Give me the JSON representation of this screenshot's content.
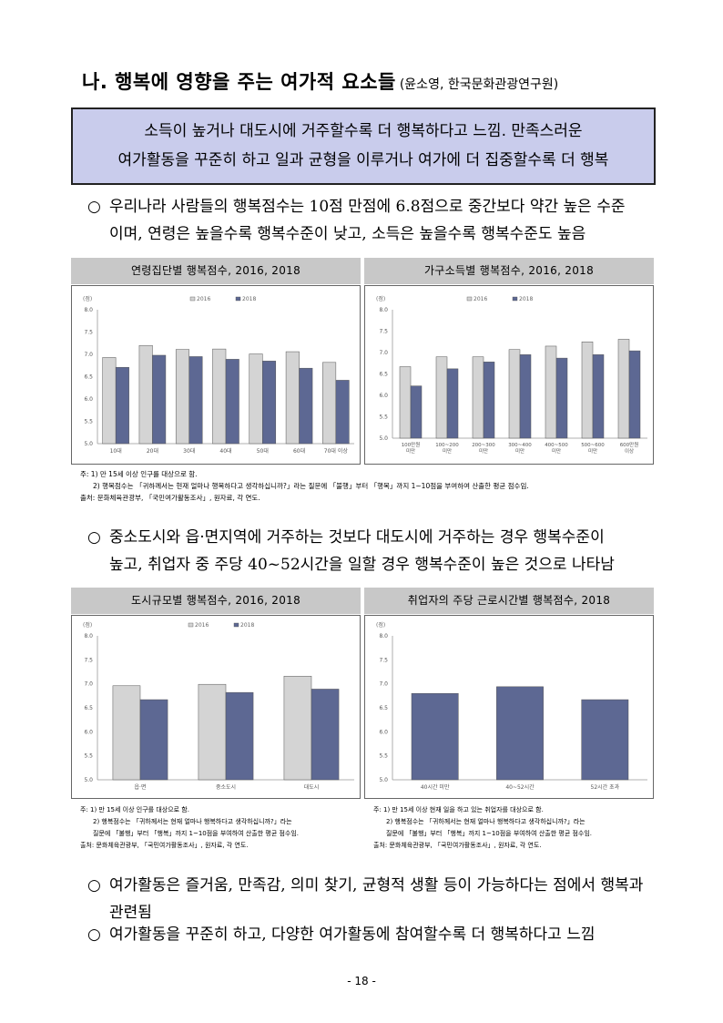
{
  "title": {
    "main": "나. 행복에 영향을 주는 여가적 요소들",
    "source": "(윤소영, 한국문화관광연구원)"
  },
  "summary": {
    "line1": "소득이 높거나 대도시에 거주할수록 더 행복하다고 느낌. 만족스러운",
    "line2": "여가활동을 꾸준히 하고 일과 균형을 이루거나 여가에 더 집중할수록 더 행복"
  },
  "bullets": {
    "b1": {
      "mark": "○",
      "line1": "우리나라 사람들의 행복점수는 10점 만점에 6.8점으로 중간보다 약간 높은 수준",
      "line2": "이며, 연령은 높을수록 행복수준이 낮고, 소득은 높을수록 행복수준도 높음"
    },
    "b2": {
      "mark": "○",
      "line1": "중소도시와 읍·면지역에 거주하는 것보다 대도시에 거주하는 경우 행복수준이",
      "line2": "높고, 취업자 중 주당 40~52시간을 일할 경우 행복수준이 높은 것으로 나타남"
    },
    "b3": {
      "mark": "○",
      "line1": "여가활동은 즐거움, 만족감, 의미 찾기, 균형적 생활 등이 가능하다는 점에서 행복과",
      "line2": "관련됨"
    },
    "b4": {
      "mark": "○",
      "line1": "여가활동을 꾸준히 하고, 다양한 여가활동에 참여할수록 더 행복하다고 느낌"
    }
  },
  "colors": {
    "s2016": "#d4d4d4",
    "s2018": "#5d6893",
    "header": "#c8c8c8",
    "summary_bg": "#c9ccec"
  },
  "chart_data": [
    {
      "type": "bar",
      "title": "연령집단별 행복점수, 2016, 2018",
      "unit": "(점)",
      "categories": [
        "10대",
        "20대",
        "30대",
        "40대",
        "50대",
        "60대",
        "70대 이상"
      ],
      "series": [
        {
          "name": "2016",
          "values": [
            6.93,
            7.2,
            7.11,
            7.12,
            7.01,
            7.06,
            6.82
          ]
        },
        {
          "name": "2018",
          "values": [
            6.71,
            6.98,
            6.95,
            6.89,
            6.85,
            6.69,
            6.42
          ]
        }
      ],
      "ylim": [
        5.0,
        8.0
      ],
      "yticks": [
        "5.0",
        "5.5",
        "6.0",
        "6.5",
        "7.0",
        "7.5",
        "8.0"
      ],
      "legend": "top"
    },
    {
      "type": "bar",
      "title": "가구소득별 행복점수, 2016, 2018",
      "unit": "(점)",
      "categories": [
        "100만원 미만",
        "100~200 미만",
        "200~300 미만",
        "300~400 미만",
        "400~500 미만",
        "500~600 미만",
        "600만원 이상"
      ],
      "series": [
        {
          "name": "2016",
          "values": [
            6.67,
            6.9,
            6.9,
            7.07,
            7.15,
            7.25,
            7.31
          ]
        },
        {
          "name": "2018",
          "values": [
            6.22,
            6.62,
            6.78,
            6.95,
            6.87,
            6.95,
            7.04
          ]
        }
      ],
      "ylim": [
        5.0,
        8.0
      ],
      "yticks": [
        "5.0",
        "5.5",
        "6.0",
        "6.5",
        "7.0",
        "7.5",
        "8.0"
      ],
      "legend": "top"
    },
    {
      "type": "bar",
      "title": "도시규모별 행복점수, 2016, 2018",
      "unit": "(점)",
      "categories": [
        "읍·면",
        "중소도시",
        "대도시"
      ],
      "series": [
        {
          "name": "2016",
          "values": [
            6.96,
            6.99,
            7.16
          ]
        },
        {
          "name": "2018",
          "values": [
            6.67,
            6.82,
            6.89
          ]
        }
      ],
      "ylim": [
        5.0,
        8.0
      ],
      "yticks": [
        "5.0",
        "5.5",
        "6.0",
        "6.5",
        "7.0",
        "7.5",
        "8.0"
      ],
      "legend": "top"
    },
    {
      "type": "bar",
      "title": "취업자의 주당 근로시간별 행복점수, 2018",
      "unit": "(점)",
      "categories": [
        "40시간 미만",
        "40~52시간",
        "52시간 초과"
      ],
      "series": [
        {
          "values": [
            6.8,
            6.94,
            6.67
          ]
        }
      ],
      "ylim": [
        5.0,
        8.0
      ],
      "yticks": [
        "5.0",
        "5.5",
        "6.0",
        "6.5",
        "7.0",
        "7.5",
        "8.0"
      ]
    }
  ],
  "notes": {
    "a": {
      "l1": "주: 1) 만 15세 이상 인구를 대상으로 함.",
      "l2": "2) 행복점수는 「귀하께서는 현재 얼마나 행복하다고 생각하십니까?」라는 질문에 「불행」부터 「행복」까지 1~10점을 부여하여 산출한 평균 점수임.",
      "l3": "출처: 문화체육관광부, 「국민여가활동조사」, 원자료, 각 연도."
    },
    "b": {
      "l1": "주: 1) 만 15세 이상 인구를 대상으로 함.",
      "l2": "2) 행복점수는 「귀하께서는 현재 얼마나 행복하다고 생각하십니까?」라는",
      "l3": "질문에 「불행」부터 「행복」까지 1~10점을 부여하여 산출한 평균 점수임.",
      "l4": "출처: 문화체육관광부, 「국민여가활동조사」, 원자료, 각 연도."
    },
    "c": {
      "l1": "주: 1) 만 15세 이상 현재 일을 하고 있는 취업자를 대상으로 함.",
      "l2": "2) 행복점수는 「귀하께서는 현재 얼마나 행복하다고 생각하십니까?」라는",
      "l3": "질문에 「불행」부터 「행복」까지 1~10점을 부여하여 산출한 평균 점수임.",
      "l4": "출처: 문화체육관광부, 「국민여가활동조사」, 원자료, 각 연도."
    }
  },
  "page_number": "- 18 -"
}
